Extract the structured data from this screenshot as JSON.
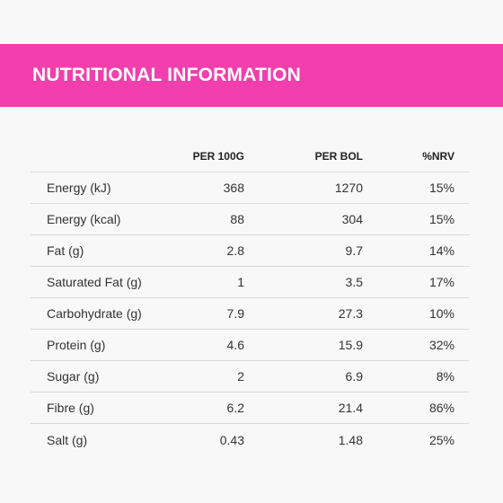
{
  "header": {
    "title": "NUTRITIONAL INFORMATION"
  },
  "colors": {
    "banner": "#f23fad",
    "background": "#f8f8f8",
    "text": "#333333",
    "divider": "#d9d9d9"
  },
  "table": {
    "columns": {
      "name": "",
      "per_100g": "PER 100G",
      "per_bol": "PER BOL",
      "nrv": "%NRV"
    },
    "rows": [
      {
        "name": "Energy (kJ)",
        "per_100g": "368",
        "per_bol": "1270",
        "nrv": "15%"
      },
      {
        "name": "Energy (kcal)",
        "per_100g": "88",
        "per_bol": "304",
        "nrv": "15%"
      },
      {
        "name": "Fat (g)",
        "per_100g": "2.8",
        "per_bol": "9.7",
        "nrv": "14%"
      },
      {
        "name": "Saturated Fat (g)",
        "per_100g": "1",
        "per_bol": "3.5",
        "nrv": "17%"
      },
      {
        "name": "Carbohydrate (g)",
        "per_100g": "7.9",
        "per_bol": "27.3",
        "nrv": "10%"
      },
      {
        "name": "Protein (g)",
        "per_100g": "4.6",
        "per_bol": "15.9",
        "nrv": "32%"
      },
      {
        "name": "Sugar (g)",
        "per_100g": "2",
        "per_bol": "6.9",
        "nrv": "8%"
      },
      {
        "name": "Fibre (g)",
        "per_100g": "6.2",
        "per_bol": "21.4",
        "nrv": "86%"
      },
      {
        "name": "Salt (g)",
        "per_100g": "0.43",
        "per_bol": "1.48",
        "nrv": "25%"
      }
    ]
  }
}
